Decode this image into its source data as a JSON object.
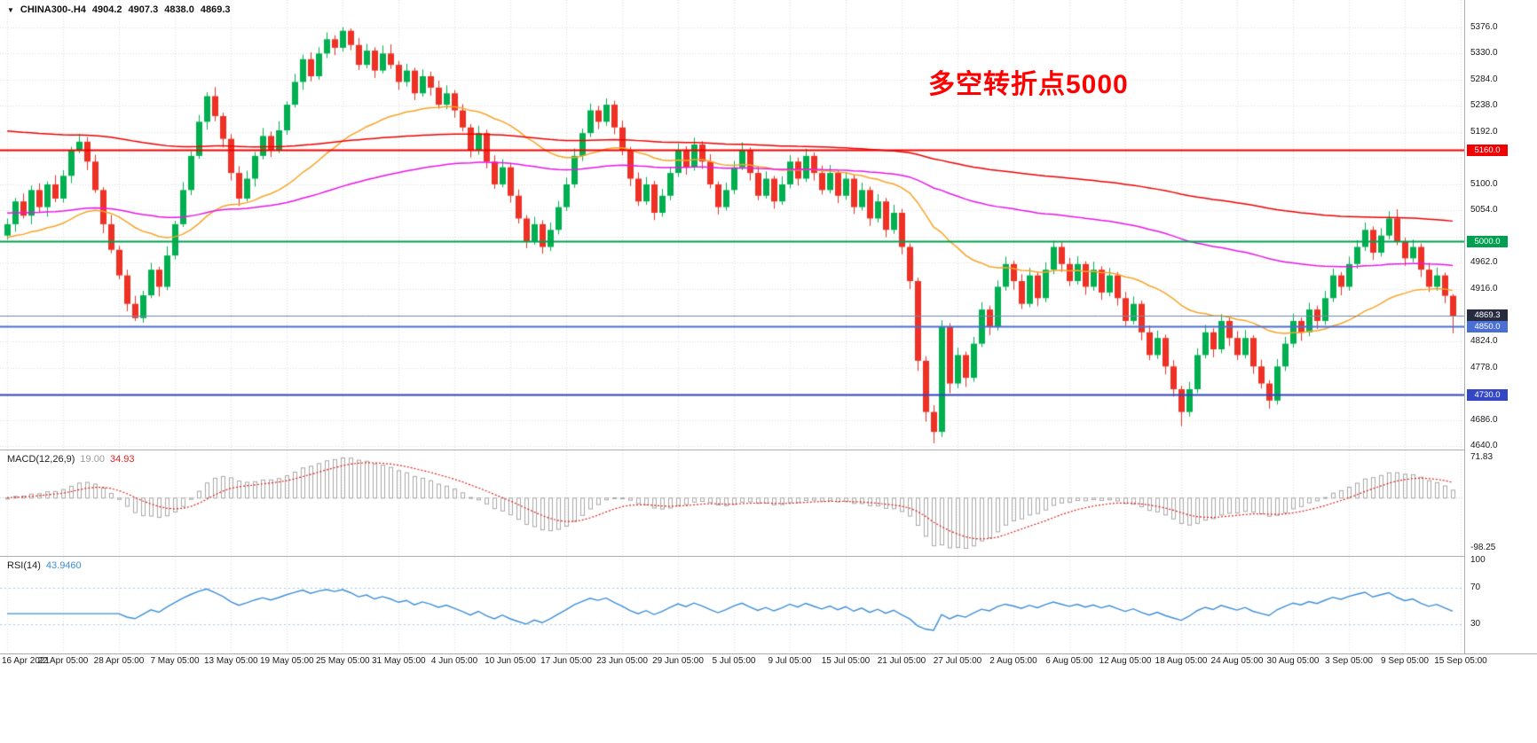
{
  "header": {
    "dropdown_icon": "▼",
    "symbol": "CHINA300-.H4",
    "open": "4904.2",
    "high": "4907.3",
    "low": "4838.0",
    "close": "4869.3"
  },
  "annotation": {
    "text": "多空转折点5000",
    "color": "#ff0000"
  },
  "indicators": {
    "macd": {
      "label": "MACD(12,26,9)",
      "fast": 12,
      "slow": 26,
      "signal_period": 9,
      "value": "19.00",
      "signal_value": "34.93",
      "axis_max": "71.83",
      "axis_min": "-98.25",
      "histogram_color": "#a8a8a8",
      "signal_color": "#e02020"
    },
    "rsi": {
      "label": "RSI(14)",
      "period": 14,
      "value": "43.9460",
      "axis_labels": [
        100,
        70,
        30
      ],
      "levels": [
        70,
        30
      ],
      "line_color": "#3d8fd8",
      "level_color": "#a9c9e9"
    }
  },
  "chart_data": {
    "type": "candlestick",
    "title": "CHINA300-.H4",
    "timeframe": "H4",
    "grid": true,
    "grid_color": "#dedede",
    "up_color": "#00b050",
    "down_color": "#ee3124",
    "y_axis": {
      "min": 4640,
      "max": 5376,
      "step": 46
    },
    "x_labels": [
      "16 Apr 2021",
      "22 Apr 05:00",
      "28 Apr 05:00",
      "7 May 05:00",
      "13 May 05:00",
      "19 May 05:00",
      "25 May 05:00",
      "31 May 05:00",
      "4 Jun 05:00",
      "10 Jun 05:00",
      "17 Jun 05:00",
      "23 Jun 05:00",
      "29 Jun 05:00",
      "5 Jul 05:00",
      "9 Jul 05:00",
      "15 Jul 05:00",
      "21 Jul 05:00",
      "27 Jul 05:00",
      "2 Aug 05:00",
      "6 Aug 05:00",
      "12 Aug 05:00",
      "18 Aug 05:00",
      "24 Aug 05:00",
      "30 Aug 05:00",
      "3 Sep 05:00",
      "9 Sep 05:00",
      "15 Sep 05:00"
    ],
    "levels": [
      {
        "name": "resistance-line-5160",
        "value": 5160.0,
        "label": "5160.0",
        "color": "#f00000"
      },
      {
        "name": "pivot-line-5000",
        "value": 5000.0,
        "label": "5000.0",
        "color": "#00a050"
      },
      {
        "name": "support-line-4850",
        "value": 4850.0,
        "label": "4850.0",
        "color": "#4a6fd4"
      },
      {
        "name": "support-line-4730",
        "value": 4730.0,
        "label": "4730.0",
        "color": "#3346c4"
      }
    ],
    "current_price": {
      "name": "bid-price-tag",
      "value": 4869.3,
      "label": "4869.3",
      "color": "#262b3f",
      "line_color": "#7088a8"
    },
    "moving_averages": [
      {
        "name": "ma-fast",
        "period": 34,
        "seed": 5005,
        "color": "#f7a428"
      },
      {
        "name": "ma-medium",
        "period": 120,
        "seed": 5050,
        "color": "#e815e8"
      },
      {
        "name": "ma-slow",
        "period": 240,
        "seed": 5195,
        "color": "#f00000"
      }
    ],
    "candles": [
      [
        5010,
        5040,
        5003,
        5030
      ],
      [
        5030,
        5076,
        5017,
        5070
      ],
      [
        5070,
        5084,
        5040,
        5045
      ],
      [
        5045,
        5098,
        5030,
        5090
      ],
      [
        5090,
        5102,
        5051,
        5060
      ],
      [
        5060,
        5105,
        5043,
        5100
      ],
      [
        5100,
        5116,
        5069,
        5075
      ],
      [
        5075,
        5125,
        5068,
        5115
      ],
      [
        5115,
        5166,
        5102,
        5160
      ],
      [
        5160,
        5189,
        5155,
        5175
      ],
      [
        5175,
        5183,
        5125,
        5140
      ],
      [
        5140,
        5152,
        5085,
        5090
      ],
      [
        5090,
        5095,
        5014,
        5030
      ],
      [
        5030,
        5046,
        4979,
        4985
      ],
      [
        4985,
        4992,
        4933,
        4940
      ],
      [
        4940,
        4950,
        4877,
        4890
      ],
      [
        4890,
        4904,
        4860,
        4865
      ],
      [
        4865,
        4913,
        4857,
        4905
      ],
      [
        4905,
        4962,
        4900,
        4950
      ],
      [
        4950,
        4955,
        4903,
        4920
      ],
      [
        4920,
        4991,
        4914,
        4975
      ],
      [
        4975,
        5036,
        4968,
        5030
      ],
      [
        5030,
        5104,
        5025,
        5090
      ],
      [
        5090,
        5158,
        5081,
        5150
      ],
      [
        5150,
        5222,
        5145,
        5210
      ],
      [
        5210,
        5262,
        5196,
        5255
      ],
      [
        5255,
        5271,
        5211,
        5220
      ],
      [
        5220,
        5226,
        5165,
        5180
      ],
      [
        5180,
        5188,
        5107,
        5120
      ],
      [
        5120,
        5132,
        5062,
        5075
      ],
      [
        5075,
        5124,
        5070,
        5110
      ],
      [
        5110,
        5157,
        5096,
        5150
      ],
      [
        5150,
        5199,
        5144,
        5185
      ],
      [
        5185,
        5193,
        5148,
        5160
      ],
      [
        5160,
        5211,
        5155,
        5195
      ],
      [
        5195,
        5246,
        5187,
        5240
      ],
      [
        5240,
        5294,
        5235,
        5280
      ],
      [
        5280,
        5328,
        5266,
        5320
      ],
      [
        5320,
        5332,
        5281,
        5290
      ],
      [
        5290,
        5341,
        5284,
        5330
      ],
      [
        5330,
        5367,
        5322,
        5355
      ],
      [
        5355,
        5362,
        5327,
        5340
      ],
      [
        5340,
        5376,
        5333,
        5370
      ],
      [
        5370,
        5374,
        5336,
        5345
      ],
      [
        5345,
        5357,
        5301,
        5310
      ],
      [
        5310,
        5347,
        5304,
        5335
      ],
      [
        5335,
        5341,
        5287,
        5300
      ],
      [
        5300,
        5344,
        5295,
        5330
      ],
      [
        5330,
        5346,
        5303,
        5310
      ],
      [
        5310,
        5317,
        5266,
        5280
      ],
      [
        5280,
        5312,
        5272,
        5300
      ],
      [
        5300,
        5305,
        5248,
        5260
      ],
      [
        5260,
        5302,
        5254,
        5290
      ],
      [
        5290,
        5298,
        5256,
        5270
      ],
      [
        5270,
        5282,
        5233,
        5240
      ],
      [
        5240,
        5274,
        5232,
        5260
      ],
      [
        5260,
        5266,
        5217,
        5230
      ],
      [
        5230,
        5241,
        5193,
        5200
      ],
      [
        5200,
        5206,
        5147,
        5160
      ],
      [
        5160,
        5203,
        5152,
        5190
      ],
      [
        5190,
        5196,
        5128,
        5140
      ],
      [
        5140,
        5151,
        5092,
        5100
      ],
      [
        5100,
        5144,
        5095,
        5130
      ],
      [
        5130,
        5136,
        5068,
        5080
      ],
      [
        5080,
        5091,
        5031,
        5040
      ],
      [
        5040,
        5046,
        4988,
        5000
      ],
      [
        5000,
        5043,
        4994,
        5030
      ],
      [
        5030,
        5037,
        4978,
        4990
      ],
      [
        4990,
        5033,
        4983,
        5020
      ],
      [
        5020,
        5071,
        5012,
        5060
      ],
      [
        5060,
        5112,
        5053,
        5100
      ],
      [
        5100,
        5163,
        5094,
        5150
      ],
      [
        5150,
        5198,
        5141,
        5190
      ],
      [
        5190,
        5242,
        5183,
        5230
      ],
      [
        5230,
        5238,
        5197,
        5210
      ],
      [
        5210,
        5251,
        5203,
        5240
      ],
      [
        5240,
        5247,
        5188,
        5200
      ],
      [
        5200,
        5212,
        5151,
        5160
      ],
      [
        5160,
        5166,
        5097,
        5110
      ],
      [
        5110,
        5121,
        5062,
        5070
      ],
      [
        5070,
        5113,
        5064,
        5100
      ],
      [
        5100,
        5106,
        5037,
        5050
      ],
      [
        5050,
        5092,
        5043,
        5080
      ],
      [
        5080,
        5131,
        5072,
        5120
      ],
      [
        5120,
        5172,
        5113,
        5160
      ],
      [
        5160,
        5167,
        5117,
        5130
      ],
      [
        5130,
        5182,
        5124,
        5170
      ],
      [
        5170,
        5176,
        5127,
        5140
      ],
      [
        5140,
        5153,
        5093,
        5100
      ],
      [
        5100,
        5105,
        5047,
        5060
      ],
      [
        5060,
        5103,
        5054,
        5090
      ],
      [
        5090,
        5141,
        5083,
        5130
      ],
      [
        5130,
        5174,
        5125,
        5160
      ],
      [
        5160,
        5165,
        5107,
        5120
      ],
      [
        5120,
        5132,
        5072,
        5080
      ],
      [
        5080,
        5123,
        5075,
        5110
      ],
      [
        5110,
        5115,
        5057,
        5070
      ],
      [
        5070,
        5114,
        5064,
        5100
      ],
      [
        5100,
        5151,
        5093,
        5140
      ],
      [
        5140,
        5147,
        5098,
        5110
      ],
      [
        5110,
        5163,
        5104,
        5150
      ],
      [
        5150,
        5156,
        5107,
        5120
      ],
      [
        5120,
        5133,
        5082,
        5090
      ],
      [
        5090,
        5134,
        5084,
        5120
      ],
      [
        5120,
        5125,
        5067,
        5080
      ],
      [
        5080,
        5122,
        5073,
        5110
      ],
      [
        5110,
        5117,
        5048,
        5060
      ],
      [
        5060,
        5103,
        5054,
        5090
      ],
      [
        5090,
        5096,
        5027,
        5040
      ],
      [
        5040,
        5083,
        5033,
        5070
      ],
      [
        5070,
        5076,
        5007,
        5020
      ],
      [
        5020,
        5064,
        5013,
        5050
      ],
      [
        5050,
        5057,
        4977,
        4990
      ],
      [
        4990,
        4996,
        4916,
        4930
      ],
      [
        4930,
        4936,
        4772,
        4790
      ],
      [
        4790,
        4798,
        4683,
        4700
      ],
      [
        4700,
        4712,
        4645,
        4665
      ],
      [
        4665,
        4861,
        4656,
        4850
      ],
      [
        4850,
        4856,
        4733,
        4750
      ],
      [
        4750,
        4813,
        4742,
        4800
      ],
      [
        4800,
        4806,
        4744,
        4760
      ],
      [
        4760,
        4832,
        4753,
        4820
      ],
      [
        4820,
        4893,
        4814,
        4880
      ],
      [
        4880,
        4887,
        4835,
        4850
      ],
      [
        4850,
        4931,
        4843,
        4920
      ],
      [
        4920,
        4973,
        4913,
        4960
      ],
      [
        4960,
        4966,
        4915,
        4930
      ],
      [
        4930,
        4942,
        4881,
        4890
      ],
      [
        4890,
        4953,
        4884,
        4940
      ],
      [
        4940,
        4945,
        4886,
        4900
      ],
      [
        4900,
        4963,
        4893,
        4950
      ],
      [
        4950,
        5001,
        4942,
        4990
      ],
      [
        4990,
        4998,
        4946,
        4960
      ],
      [
        4960,
        4971,
        4921,
        4930
      ],
      [
        4930,
        4974,
        4924,
        4960
      ],
      [
        4960,
        4965,
        4906,
        4920
      ],
      [
        4920,
        4964,
        4913,
        4950
      ],
      [
        4950,
        4956,
        4897,
        4910
      ],
      [
        4910,
        4953,
        4903,
        4940
      ],
      [
        4940,
        4946,
        4887,
        4900
      ],
      [
        4900,
        4911,
        4851,
        4860
      ],
      [
        4860,
        4903,
        4854,
        4890
      ],
      [
        4890,
        4896,
        4826,
        4840
      ],
      [
        4840,
        4852,
        4791,
        4800
      ],
      [
        4800,
        4843,
        4793,
        4830
      ],
      [
        4830,
        4836,
        4766,
        4780
      ],
      [
        4780,
        4791,
        4727,
        4740
      ],
      [
        4740,
        4746,
        4675,
        4700
      ],
      [
        4700,
        4753,
        4692,
        4740
      ],
      [
        4740,
        4812,
        4733,
        4800
      ],
      [
        4800,
        4853,
        4794,
        4840
      ],
      [
        4840,
        4847,
        4796,
        4810
      ],
      [
        4810,
        4872,
        4803,
        4860
      ],
      [
        4860,
        4866,
        4816,
        4830
      ],
      [
        4830,
        4842,
        4791,
        4800
      ],
      [
        4800,
        4844,
        4794,
        4830
      ],
      [
        4830,
        4835,
        4767,
        4780
      ],
      [
        4780,
        4792,
        4741,
        4750
      ],
      [
        4750,
        4756,
        4706,
        4720
      ],
      [
        4720,
        4793,
        4713,
        4780
      ],
      [
        4780,
        4832,
        4772,
        4820
      ],
      [
        4820,
        4873,
        4813,
        4860
      ],
      [
        4860,
        4866,
        4825,
        4840
      ],
      [
        4840,
        4892,
        4833,
        4880
      ],
      [
        4880,
        4887,
        4846,
        4860
      ],
      [
        4860,
        4913,
        4853,
        4900
      ],
      [
        4900,
        4952,
        4893,
        4940
      ],
      [
        4940,
        4946,
        4905,
        4920
      ],
      [
        4920,
        4973,
        4913,
        4960
      ],
      [
        4960,
        5002,
        4952,
        4990
      ],
      [
        4990,
        5033,
        4983,
        5020
      ],
      [
        5020,
        5026,
        4967,
        4980
      ],
      [
        4980,
        5023,
        4973,
        5010
      ],
      [
        5010,
        5053,
        5003,
        5040
      ],
      [
        5040,
        5056,
        4993,
        5000
      ],
      [
        5000,
        5006,
        4957,
        4970
      ],
      [
        4970,
        5003,
        4963,
        4990
      ],
      [
        4990,
        4996,
        4937,
        4950
      ],
      [
        4950,
        4962,
        4911,
        4920
      ],
      [
        4920,
        4954,
        4913,
        4940
      ],
      [
        4940,
        4945,
        4891,
        4904.2
      ],
      [
        4904.2,
        4907.3,
        4838.0,
        4869.3
      ]
    ]
  }
}
